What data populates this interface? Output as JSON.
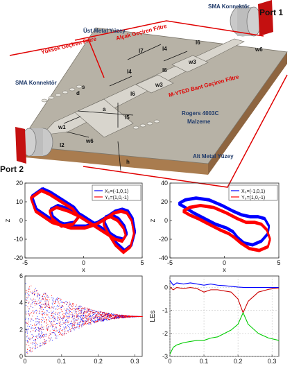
{
  "colors": {
    "blue": "#0000ff",
    "red": "#ff0000",
    "green": "#00cc00",
    "label_red": "#e00000",
    "label_navy": "#1f3a6a",
    "board_top": "#b7b2a6",
    "board_side": "#a97c4f",
    "metal": "#d8d5cd"
  },
  "diagram": {
    "port1": "Port 1",
    "port2": "Port 2",
    "sma_top": "SMA Konnektör",
    "sma_left": "SMA Konnektör",
    "top_surface": "Üst Metal Yüzey",
    "bottom_surface": "Alt Metal Yüzey",
    "high_pass": "Yüksek Geçiren Filtre",
    "low_pass": "Alçak Geçiren Filtre",
    "bandpass": "M-YTED Bant Geçiren Filtre",
    "substrate_line1": "Rogers 4003C",
    "substrate_line2": "Malzeme",
    "dims": {
      "l7": "l7",
      "l4a": "l4",
      "l6a": "l6",
      "w3a": "w3",
      "w6a": "w6",
      "l4b": "l4",
      "l6b": "l6",
      "w3b": "w3",
      "s": "s",
      "d": "d",
      "a": "a",
      "l5": "l5",
      "w1": "w1",
      "l2": "l2",
      "w6b": "w6",
      "h": "h"
    }
  },
  "chart_data": [
    {
      "type": "line",
      "panel": "phase-portrait-xz-1",
      "xlabel": "x",
      "ylabel": "z",
      "xlim": [
        -5,
        5
      ],
      "ylim": [
        -20,
        20
      ],
      "xticks": [
        "-5",
        "0",
        "5"
      ],
      "yticks": [
        "20",
        "10",
        "0",
        "-10",
        "-20"
      ],
      "legend_position": "top-right",
      "series": [
        {
          "name": "X₀=(-1,0,1)",
          "color": "#0000ff",
          "x": [
            -3.5,
            -4.4,
            -4.0,
            -2.6,
            -1.0,
            0.2,
            1.2,
            2.0,
            2.7,
            3.3,
            3.8,
            4.2,
            4.4,
            4.1,
            3.5,
            2.8,
            2.2,
            1.8,
            1.9,
            2.4,
            3.0,
            3.5,
            3.7,
            3.4,
            2.8,
            1.8,
            0.8,
            -0.2,
            -1.2,
            -2.2,
            -2.8,
            -2.6,
            -1.8,
            -0.8,
            -0.3,
            -0.8,
            -1.8,
            -2.8,
            -3.5
          ],
          "y": [
            17,
            13,
            6,
            0,
            -3,
            -3,
            -1,
            2,
            5,
            6,
            5,
            1,
            -6,
            -13,
            -16,
            -12,
            -6,
            -1,
            2,
            3,
            1,
            -3,
            -7,
            -10,
            -9,
            -5,
            -1,
            3,
            6,
            8,
            6,
            2,
            -2,
            -1,
            3,
            7,
            11,
            15,
            17
          ]
        },
        {
          "name": "Y₀=(1,0,-1)",
          "color": "#ff0000",
          "x": [
            -3.6,
            -4.5,
            -4.1,
            -2.7,
            -1.1,
            0.1,
            1.1,
            1.9,
            2.6,
            3.2,
            3.7,
            4.1,
            4.3,
            4.0,
            3.4,
            2.7,
            2.1,
            1.7,
            1.8,
            2.3,
            2.9,
            3.4,
            3.6,
            3.3,
            2.7,
            1.7,
            0.7,
            -0.3,
            -1.3,
            -2.3,
            -2.9,
            -2.7,
            -1.9,
            -0.9,
            -0.4,
            -0.9,
            -1.9,
            -2.9,
            -3.6
          ],
          "y": [
            16,
            12,
            5,
            -1,
            -4,
            -4,
            -2,
            1,
            4,
            5,
            4,
            0,
            -7,
            -14,
            -17,
            -13,
            -7,
            -2,
            1,
            2,
            0,
            -4,
            -8,
            -11,
            -10,
            -6,
            -2,
            2,
            5,
            7,
            5,
            1,
            -3,
            -2,
            2,
            6,
            10,
            14,
            16
          ]
        }
      ]
    },
    {
      "type": "line",
      "panel": "phase-portrait-xz-2",
      "xlabel": "x",
      "ylabel": "z",
      "xlim": [
        -5,
        5
      ],
      "ylim": [
        -40,
        40
      ],
      "xticks": [
        "-5",
        "0",
        "5"
      ],
      "yticks": [
        "40",
        "20",
        "0",
        "-20",
        "-40"
      ],
      "legend_position": "top-right",
      "series": [
        {
          "name": "X₀=(-1,0,1)",
          "color": "#0000ff",
          "x": [
            -4.2,
            -3.6,
            -2.6,
            -1.4,
            -0.2,
            0.8,
            1.6,
            2.4,
            3.1,
            3.7,
            4.1,
            4.0,
            3.4,
            2.6,
            1.8,
            1.2,
            0.8,
            0.2,
            -0.8,
            -1.8,
            -2.8,
            -3.6,
            -4.2
          ],
          "y": [
            18,
            22,
            24,
            22,
            16,
            10,
            6,
            4,
            4,
            2,
            -6,
            -14,
            -22,
            -26,
            -24,
            -18,
            -12,
            -8,
            -4,
            2,
            8,
            14,
            18
          ]
        },
        {
          "name": "Y₀=(1,0,-1)",
          "color": "#ff0000",
          "x": [
            -3.8,
            -3.2,
            -2.2,
            -1.0,
            0.2,
            1.2,
            2.0,
            2.8,
            3.4,
            3.9,
            4.2,
            4.0,
            3.2,
            2.3,
            1.5,
            0.9,
            0.4,
            -0.4,
            -1.4,
            -2.4,
            -3.2,
            -3.8
          ],
          "y": [
            10,
            14,
            16,
            14,
            8,
            2,
            -2,
            -2,
            -4,
            -10,
            -20,
            -28,
            -32,
            -30,
            -24,
            -18,
            -14,
            -10,
            -4,
            2,
            6,
            10
          ]
        }
      ]
    },
    {
      "type": "scatter",
      "panel": "bifurcation-diagram",
      "xlim": [
        0,
        0.32
      ],
      "ylim": [
        0,
        6
      ],
      "xticks": [
        "0",
        "0.1",
        "0.2",
        "0.3"
      ],
      "yticks": [
        "6",
        "4",
        "2",
        "0"
      ],
      "series": [
        {
          "name": "",
          "color": "#0000ff",
          "envelope_x": [
            0,
            0.02,
            0.05,
            0.08,
            0.12,
            0.16,
            0.2,
            0.25,
            0.3,
            0.32
          ],
          "envelope_upper": [
            5.6,
            5.3,
            4.8,
            4.5,
            4.1,
            3.7,
            3.4,
            3.15,
            3.02,
            3.0
          ],
          "envelope_lower": [
            0.1,
            0.4,
            0.9,
            1.3,
            1.8,
            2.3,
            2.6,
            2.85,
            2.98,
            3.0
          ]
        },
        {
          "name": "",
          "color": "#ff0000",
          "envelope_x": [
            0,
            0.02,
            0.05,
            0.08,
            0.12,
            0.16,
            0.2,
            0.25,
            0.3,
            0.32
          ],
          "envelope_upper": [
            5.6,
            5.3,
            4.8,
            4.5,
            4.1,
            3.7,
            3.4,
            3.15,
            3.02,
            3.0
          ],
          "envelope_lower": [
            0.1,
            0.4,
            0.9,
            1.3,
            1.8,
            2.3,
            2.6,
            2.85,
            2.98,
            3.0
          ]
        }
      ]
    },
    {
      "type": "line",
      "panel": "lyapunov-exponents",
      "ylabel": "LEs",
      "xlim": [
        0,
        0.32
      ],
      "ylim": [
        -3,
        0.5
      ],
      "xticks": [
        "0",
        "0.1",
        "0.2",
        "0.3"
      ],
      "yticks": [
        "0",
        "-1",
        "-2",
        "-3"
      ],
      "grid": true,
      "series": [
        {
          "name": "",
          "color": "#0000ff",
          "x": [
            0,
            0.01,
            0.02,
            0.04,
            0.06,
            0.08,
            0.1,
            0.12,
            0.14,
            0.16,
            0.18,
            0.2,
            0.22,
            0.25,
            0.28,
            0.32
          ],
          "y": [
            0.3,
            0.1,
            0.2,
            0.15,
            0.2,
            0.15,
            0.1,
            0.15,
            0.1,
            0.08,
            0.05,
            0.02,
            0,
            0,
            0,
            0
          ]
        },
        {
          "name": "",
          "color": "#cc0000",
          "x": [
            0,
            0.01,
            0.02,
            0.04,
            0.06,
            0.08,
            0.1,
            0.12,
            0.14,
            0.16,
            0.18,
            0.2,
            0.215,
            0.23,
            0.26,
            0.29,
            0.32
          ],
          "y": [
            0,
            -0.1,
            0,
            -0.05,
            0,
            -0.05,
            -0.2,
            -0.1,
            -0.1,
            -0.15,
            -0.2,
            -0.5,
            -1.1,
            -0.6,
            -0.2,
            -0.08,
            -0.02
          ]
        },
        {
          "name": "",
          "color": "#00cc00",
          "x": [
            0,
            0.01,
            0.02,
            0.04,
            0.06,
            0.08,
            0.1,
            0.12,
            0.14,
            0.16,
            0.18,
            0.2,
            0.215,
            0.23,
            0.26,
            0.29,
            0.32
          ],
          "y": [
            -2.9,
            -2.6,
            -2.5,
            -2.4,
            -2.35,
            -2.3,
            -2.3,
            -2.2,
            -2.15,
            -2.0,
            -1.85,
            -1.6,
            -1.1,
            -1.6,
            -2.0,
            -2.2,
            -2.3
          ]
        }
      ]
    }
  ]
}
